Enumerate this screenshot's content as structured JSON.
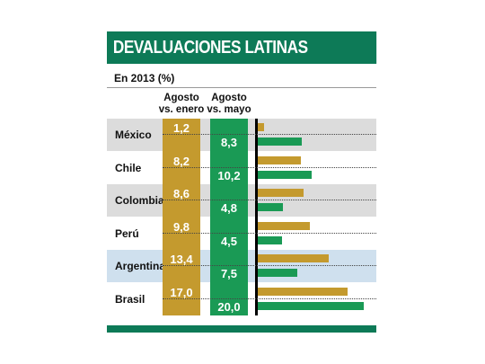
{
  "chart_data": {
    "type": "bar",
    "title": "DEVALUACIONES LATINAS",
    "subtitle": "En 2013 (%)",
    "categories": [
      "México",
      "Chile",
      "Colombia",
      "Perú",
      "Argentina",
      "Brasil"
    ],
    "series": [
      {
        "name": "Agosto vs. enero",
        "color": "#c49a2e",
        "values": [
          "1,2",
          "8,2",
          "8,6",
          "9,8",
          "13,4",
          "17,0"
        ]
      },
      {
        "name": "Agosto vs. mayo",
        "color": "#1a9a55",
        "values": [
          "8,3",
          "10,2",
          "4,8",
          "4,5",
          "7,5",
          "20,0"
        ]
      }
    ],
    "series_headers": [
      [
        "Agosto",
        "vs. enero"
      ],
      [
        "Agosto",
        "vs. mayo"
      ]
    ],
    "highlight_color": "#cfe0ee",
    "xlim": [
      0,
      20
    ]
  }
}
